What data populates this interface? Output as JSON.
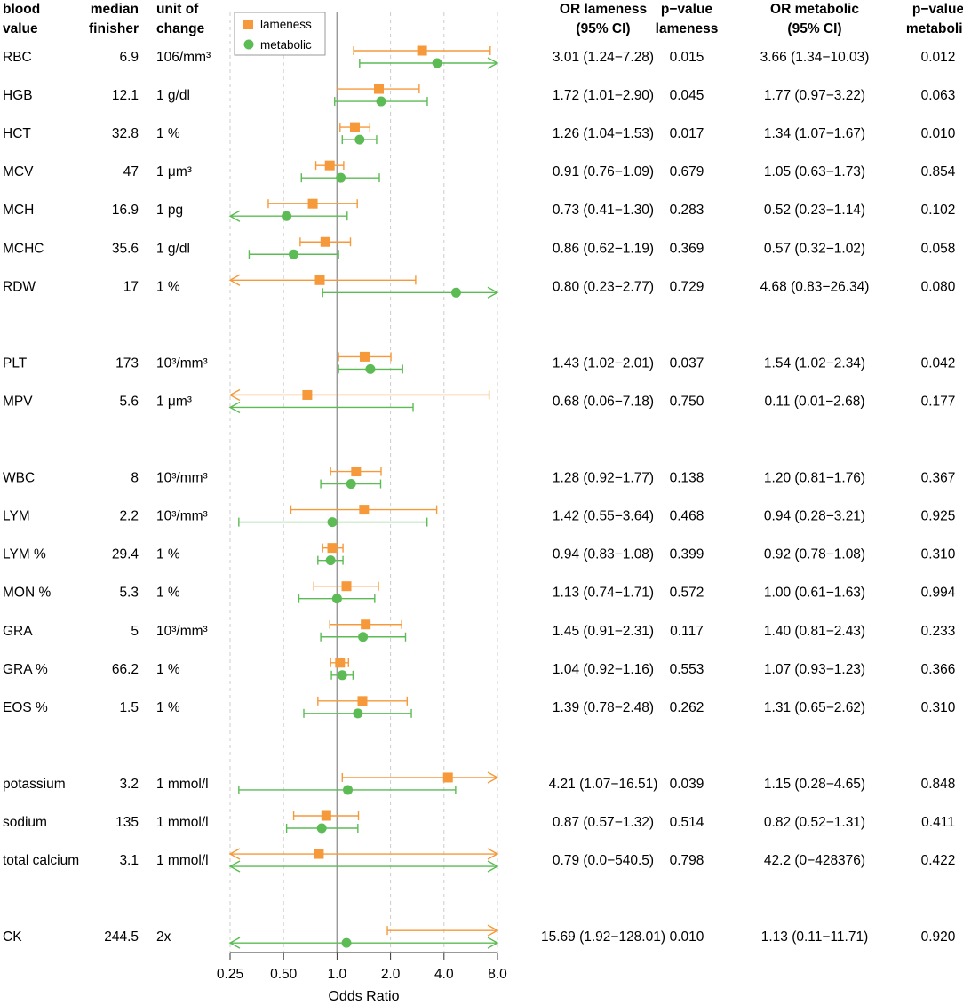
{
  "headers": {
    "blood_value": [
      "blood",
      "value"
    ],
    "median": [
      "median",
      "finisher"
    ],
    "unit": [
      "unit of",
      "change"
    ],
    "or_lameness": [
      "OR lameness",
      "(95% CI)"
    ],
    "p_lameness": [
      "p−value",
      "lameness"
    ],
    "or_metabolic": [
      "OR metabolic",
      "(95% CI)"
    ],
    "p_metabolic": [
      "p−value",
      "metabolic"
    ]
  },
  "legend": {
    "lameness": "lameness",
    "metabolic": "metabolic"
  },
  "colors": {
    "lameness": "#f5993a",
    "metabolic": "#5cbb55",
    "refline": "#9a9a9a",
    "grid": "#cccccc",
    "axis": "#333333"
  },
  "chart_data": {
    "type": "forest",
    "xlabel": "Odds Ratio",
    "x_scale": "log2",
    "xlim": [
      0.25,
      8.0
    ],
    "ticks": [
      0.25,
      0.5,
      1.0,
      2.0,
      4.0,
      8.0
    ],
    "tick_labels": [
      "0.25",
      "0.50",
      "1.0",
      "2.0",
      "4.0",
      "8.0"
    ],
    "reference_line": 1.0,
    "groups": [
      [
        {
          "name": "RBC",
          "median": "6.9",
          "unit": "106/mm³",
          "lameness": {
            "or": 3.01,
            "lo": 1.24,
            "hi": 7.28,
            "text": "3.01 (1.24−7.28)",
            "p": "0.015"
          },
          "metabolic": {
            "or": 3.66,
            "lo": 1.34,
            "hi": 10.03,
            "text": "3.66 (1.34−10.03)",
            "p": "0.012"
          }
        },
        {
          "name": "HGB",
          "median": "12.1",
          "unit": "1 g/dl",
          "lameness": {
            "or": 1.72,
            "lo": 1.01,
            "hi": 2.9,
            "text": "1.72 (1.01−2.90)",
            "p": "0.045"
          },
          "metabolic": {
            "or": 1.77,
            "lo": 0.97,
            "hi": 3.22,
            "text": "1.77 (0.97−3.22)",
            "p": "0.063"
          }
        },
        {
          "name": "HCT",
          "median": "32.8",
          "unit": "1 %",
          "lameness": {
            "or": 1.26,
            "lo": 1.04,
            "hi": 1.53,
            "text": "1.26 (1.04−1.53)",
            "p": "0.017"
          },
          "metabolic": {
            "or": 1.34,
            "lo": 1.07,
            "hi": 1.67,
            "text": "1.34 (1.07−1.67)",
            "p": "0.010"
          }
        },
        {
          "name": "MCV",
          "median": "47",
          "unit": "1 μm³",
          "lameness": {
            "or": 0.91,
            "lo": 0.76,
            "hi": 1.09,
            "text": "0.91 (0.76−1.09)",
            "p": "0.679"
          },
          "metabolic": {
            "or": 1.05,
            "lo": 0.63,
            "hi": 1.73,
            "text": "1.05 (0.63−1.73)",
            "p": "0.854"
          }
        },
        {
          "name": "MCH",
          "median": "16.9",
          "unit": "1 pg",
          "lameness": {
            "or": 0.73,
            "lo": 0.41,
            "hi": 1.3,
            "text": "0.73 (0.41−1.30)",
            "p": "0.283"
          },
          "metabolic": {
            "or": 0.52,
            "lo": 0.23,
            "hi": 1.14,
            "text": "0.52 (0.23−1.14)",
            "p": "0.102"
          }
        },
        {
          "name": "MCHC",
          "median": "35.6",
          "unit": "1 g/dl",
          "lameness": {
            "or": 0.86,
            "lo": 0.62,
            "hi": 1.19,
            "text": "0.86 (0.62−1.19)",
            "p": "0.369"
          },
          "metabolic": {
            "or": 0.57,
            "lo": 0.32,
            "hi": 1.02,
            "text": "0.57 (0.32−1.02)",
            "p": "0.058"
          }
        },
        {
          "name": "RDW",
          "median": "17",
          "unit": "1 %",
          "lameness": {
            "or": 0.8,
            "lo": 0.23,
            "hi": 2.77,
            "text": "0.80 (0.23−2.77)",
            "p": "0.729"
          },
          "metabolic": {
            "or": 4.68,
            "lo": 0.83,
            "hi": 26.34,
            "text": "4.68 (0.83−26.34)",
            "p": "0.080"
          }
        }
      ],
      [
        {
          "name": "PLT",
          "median": "173",
          "unit": "10³/mm³",
          "lameness": {
            "or": 1.43,
            "lo": 1.02,
            "hi": 2.01,
            "text": "1.43 (1.02−2.01)",
            "p": "0.037"
          },
          "metabolic": {
            "or": 1.54,
            "lo": 1.02,
            "hi": 2.34,
            "text": "1.54 (1.02−2.34)",
            "p": "0.042"
          }
        },
        {
          "name": "MPV",
          "median": "5.6",
          "unit": "1 μm³",
          "lameness": {
            "or": 0.68,
            "lo": 0.06,
            "hi": 7.18,
            "text": "0.68 (0.06−7.18)",
            "p": "0.750"
          },
          "metabolic": {
            "or": 0.11,
            "lo": 0.01,
            "hi": 2.68,
            "text": "0.11 (0.01−2.68)",
            "p": "0.177"
          }
        }
      ],
      [
        {
          "name": "WBC",
          "median": "8",
          "unit": "10³/mm³",
          "lameness": {
            "or": 1.28,
            "lo": 0.92,
            "hi": 1.77,
            "text": "1.28 (0.92−1.77)",
            "p": "0.138"
          },
          "metabolic": {
            "or": 1.2,
            "lo": 0.81,
            "hi": 1.76,
            "text": "1.20 (0.81−1.76)",
            "p": "0.367"
          }
        },
        {
          "name": "LYM",
          "median": "2.2",
          "unit": "10³/mm³",
          "lameness": {
            "or": 1.42,
            "lo": 0.55,
            "hi": 3.64,
            "text": "1.42 (0.55−3.64)",
            "p": "0.468"
          },
          "metabolic": {
            "or": 0.94,
            "lo": 0.28,
            "hi": 3.21,
            "text": "0.94 (0.28−3.21)",
            "p": "0.925"
          }
        },
        {
          "name": "LYM %",
          "median": "29.4",
          "unit": "1 %",
          "lameness": {
            "or": 0.94,
            "lo": 0.83,
            "hi": 1.08,
            "text": "0.94 (0.83−1.08)",
            "p": "0.399"
          },
          "metabolic": {
            "or": 0.92,
            "lo": 0.78,
            "hi": 1.08,
            "text": "0.92 (0.78−1.08)",
            "p": "0.310"
          }
        },
        {
          "name": "MON %",
          "median": "5.3",
          "unit": "1 %",
          "lameness": {
            "or": 1.13,
            "lo": 0.74,
            "hi": 1.71,
            "text": "1.13 (0.74−1.71)",
            "p": "0.572"
          },
          "metabolic": {
            "or": 1.0,
            "lo": 0.61,
            "hi": 1.63,
            "text": "1.00 (0.61−1.63)",
            "p": "0.994"
          }
        },
        {
          "name": "GRA",
          "median": "5",
          "unit": "10³/mm³",
          "lameness": {
            "or": 1.45,
            "lo": 0.91,
            "hi": 2.31,
            "text": "1.45 (0.91−2.31)",
            "p": "0.117"
          },
          "metabolic": {
            "or": 1.4,
            "lo": 0.81,
            "hi": 2.43,
            "text": "1.40 (0.81−2.43)",
            "p": "0.233"
          }
        },
        {
          "name": "GRA %",
          "median": "66.2",
          "unit": "1 %",
          "lameness": {
            "or": 1.04,
            "lo": 0.92,
            "hi": 1.16,
            "text": "1.04 (0.92−1.16)",
            "p": "0.553"
          },
          "metabolic": {
            "or": 1.07,
            "lo": 0.93,
            "hi": 1.23,
            "text": "1.07 (0.93−1.23)",
            "p": "0.366"
          }
        },
        {
          "name": "EOS %",
          "median": "1.5",
          "unit": "1 %",
          "lameness": {
            "or": 1.39,
            "lo": 0.78,
            "hi": 2.48,
            "text": "1.39 (0.78−2.48)",
            "p": "0.262"
          },
          "metabolic": {
            "or": 1.31,
            "lo": 0.65,
            "hi": 2.62,
            "text": "1.31 (0.65−2.62)",
            "p": "0.310"
          }
        }
      ],
      [
        {
          "name": "potassium",
          "median": "3.2",
          "unit": "1 mmol/l",
          "lameness": {
            "or": 4.21,
            "lo": 1.07,
            "hi": 16.51,
            "text": "4.21 (1.07−16.51)",
            "p": "0.039"
          },
          "metabolic": {
            "or": 1.15,
            "lo": 0.28,
            "hi": 4.65,
            "text": "1.15 (0.28−4.65)",
            "p": "0.848"
          }
        },
        {
          "name": "sodium",
          "median": "135",
          "unit": "1 mmol/l",
          "lameness": {
            "or": 0.87,
            "lo": 0.57,
            "hi": 1.32,
            "text": "0.87 (0.57−1.32)",
            "p": "0.514"
          },
          "metabolic": {
            "or": 0.82,
            "lo": 0.52,
            "hi": 1.31,
            "text": "0.82 (0.52−1.31)",
            "p": "0.411"
          }
        },
        {
          "name": "total calcium",
          "median": "3.1",
          "unit": "1 mmol/l",
          "lameness": {
            "or": 0.79,
            "lo": 0.0,
            "hi": 540.5,
            "text": "0.79 (0.0−540.5)",
            "p": "0.798"
          },
          "metabolic": {
            "or": 42.2,
            "lo": 0,
            "hi": 428376,
            "text": "42.2 (0−428376)",
            "p": "0.422"
          }
        }
      ],
      [
        {
          "name": "CK",
          "median": "244.5",
          "unit": "2x",
          "lameness": {
            "or": 15.69,
            "lo": 1.92,
            "hi": 128.01,
            "text": "15.69 (1.92−128.01)",
            "p": "0.010"
          },
          "metabolic": {
            "or": 1.13,
            "lo": 0.11,
            "hi": 11.71,
            "text": "1.13 (0.11−11.71)",
            "p": "0.920"
          }
        }
      ]
    ]
  }
}
